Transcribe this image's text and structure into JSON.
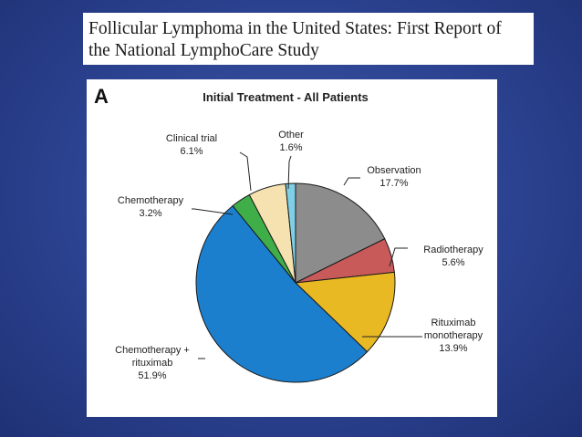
{
  "header": {
    "title_line1": "Follicular Lymphoma in the United States: First Report of",
    "title_line2": "the National LymphoCare Study"
  },
  "chart_data": {
    "type": "pie",
    "panel_label": "A",
    "title": "Initial Treatment - All Patients",
    "slices": [
      {
        "label_lines": [
          "Observation"
        ],
        "value_label": "17.7%",
        "value": 17.7,
        "color": "#8c8c8c"
      },
      {
        "label_lines": [
          "Radiotherapy"
        ],
        "value_label": "5.6%",
        "value": 5.6,
        "color": "#c85a5a"
      },
      {
        "label_lines": [
          "Rituximab",
          "monotherapy"
        ],
        "value_label": "13.9%",
        "value": 13.9,
        "color": "#e8b923"
      },
      {
        "label_lines": [
          "Chemotherapy +",
          "rituximab"
        ],
        "value_label": "51.9%",
        "value": 51.9,
        "color": "#1b7fce"
      },
      {
        "label_lines": [
          "Chemotherapy"
        ],
        "value_label": "3.2%",
        "value": 3.2,
        "color": "#3fae49"
      },
      {
        "label_lines": [
          "Clinical trial"
        ],
        "value_label": "6.1%",
        "value": 6.1,
        "color": "#f6e2b0"
      },
      {
        "label_lines": [
          "Other"
        ],
        "value_label": "1.6%",
        "value": 1.6,
        "color": "#7fd0e6"
      }
    ]
  }
}
